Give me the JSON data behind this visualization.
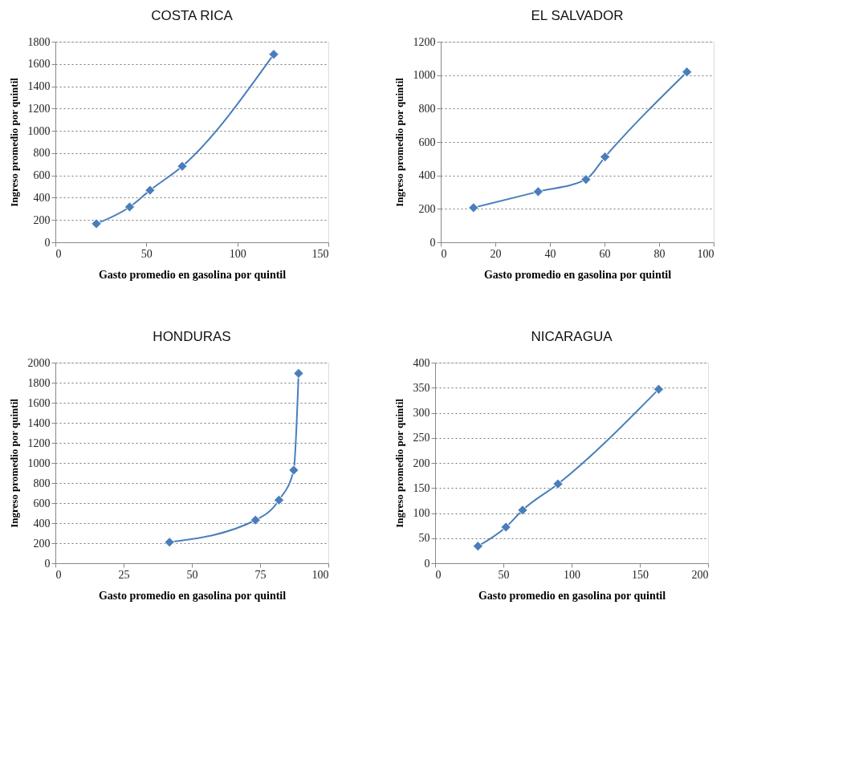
{
  "chart_data": [
    {
      "type": "line",
      "title": "COSTA RICA",
      "xlabel": "Gasto promedio en gasolina por quintil",
      "ylabel": "Ingreso promedio por quintil",
      "x": [
        22.5,
        40.8,
        52,
        69.7,
        120
      ],
      "series": [
        {
          "color": "#4a7ebb",
          "values": [
            167,
            317,
            467,
            682,
            1687
          ]
        }
      ],
      "xlim": [
        0,
        150
      ],
      "xticks": [
        0,
        50,
        100,
        150
      ],
      "ylim": [
        0,
        1800
      ],
      "yticks": [
        0,
        200,
        400,
        600,
        800,
        1000,
        1200,
        1400,
        1600,
        1800
      ],
      "grid": "y",
      "marker": "diamond",
      "line_style": "solid"
    },
    {
      "type": "line",
      "title": "EL SALVADOR",
      "xlabel": "Gasto promedio en gasolina por quintil",
      "ylabel": "Ingreso promedio por quintil",
      "x": [
        12,
        35.7,
        53.2,
        60.2,
        90.2
      ],
      "series": [
        {
          "color": "#4a7ebb",
          "values": [
            207,
            303,
            376,
            511,
            1019
          ]
        }
      ],
      "xlim": [
        0,
        100
      ],
      "xticks": [
        0,
        20,
        40,
        60,
        80,
        100
      ],
      "ylim": [
        0,
        1200
      ],
      "yticks": [
        0,
        200,
        400,
        600,
        800,
        1000,
        1200
      ],
      "grid": "y",
      "marker": "diamond",
      "line_style": "solid"
    },
    {
      "type": "line",
      "title": "HONDURAS",
      "xlabel": "Gasto promedio en gasolina por quintil",
      "ylabel": "Ingreso promedio por quintil",
      "x": [
        41.8,
        73.3,
        81.9,
        87.3,
        89.1
      ],
      "series": [
        {
          "color": "#4a7ebb",
          "values": [
            210,
            430,
            630,
            928,
            1893
          ]
        }
      ],
      "xlim": [
        0,
        100
      ],
      "xticks": [
        0,
        25,
        50,
        75,
        100
      ],
      "ylim": [
        0,
        2000
      ],
      "yticks": [
        0,
        200,
        400,
        600,
        800,
        1000,
        1200,
        1400,
        1600,
        1800,
        2000
      ],
      "grid": "y",
      "marker": "diamond",
      "line_style": "solid"
    },
    {
      "type": "line",
      "title": "NICARAGUA",
      "xlabel": "Gasto promedio en gasolina por quintil",
      "ylabel": "Ingreso promedio por quintil",
      "x": [
        31.4,
        51.9,
        64.1,
        90,
        163.8
      ],
      "series": [
        {
          "color": "#4a7ebb",
          "values": [
            34,
            72,
            106,
            158,
            347
          ]
        }
      ],
      "xlim": [
        0,
        200
      ],
      "xticks": [
        0,
        50,
        100,
        150,
        200
      ],
      "ylim": [
        0,
        400
      ],
      "yticks": [
        0,
        50,
        100,
        150,
        200,
        250,
        300,
        350,
        400
      ],
      "grid": "y",
      "marker": "diamond",
      "line_style": "solid"
    }
  ]
}
